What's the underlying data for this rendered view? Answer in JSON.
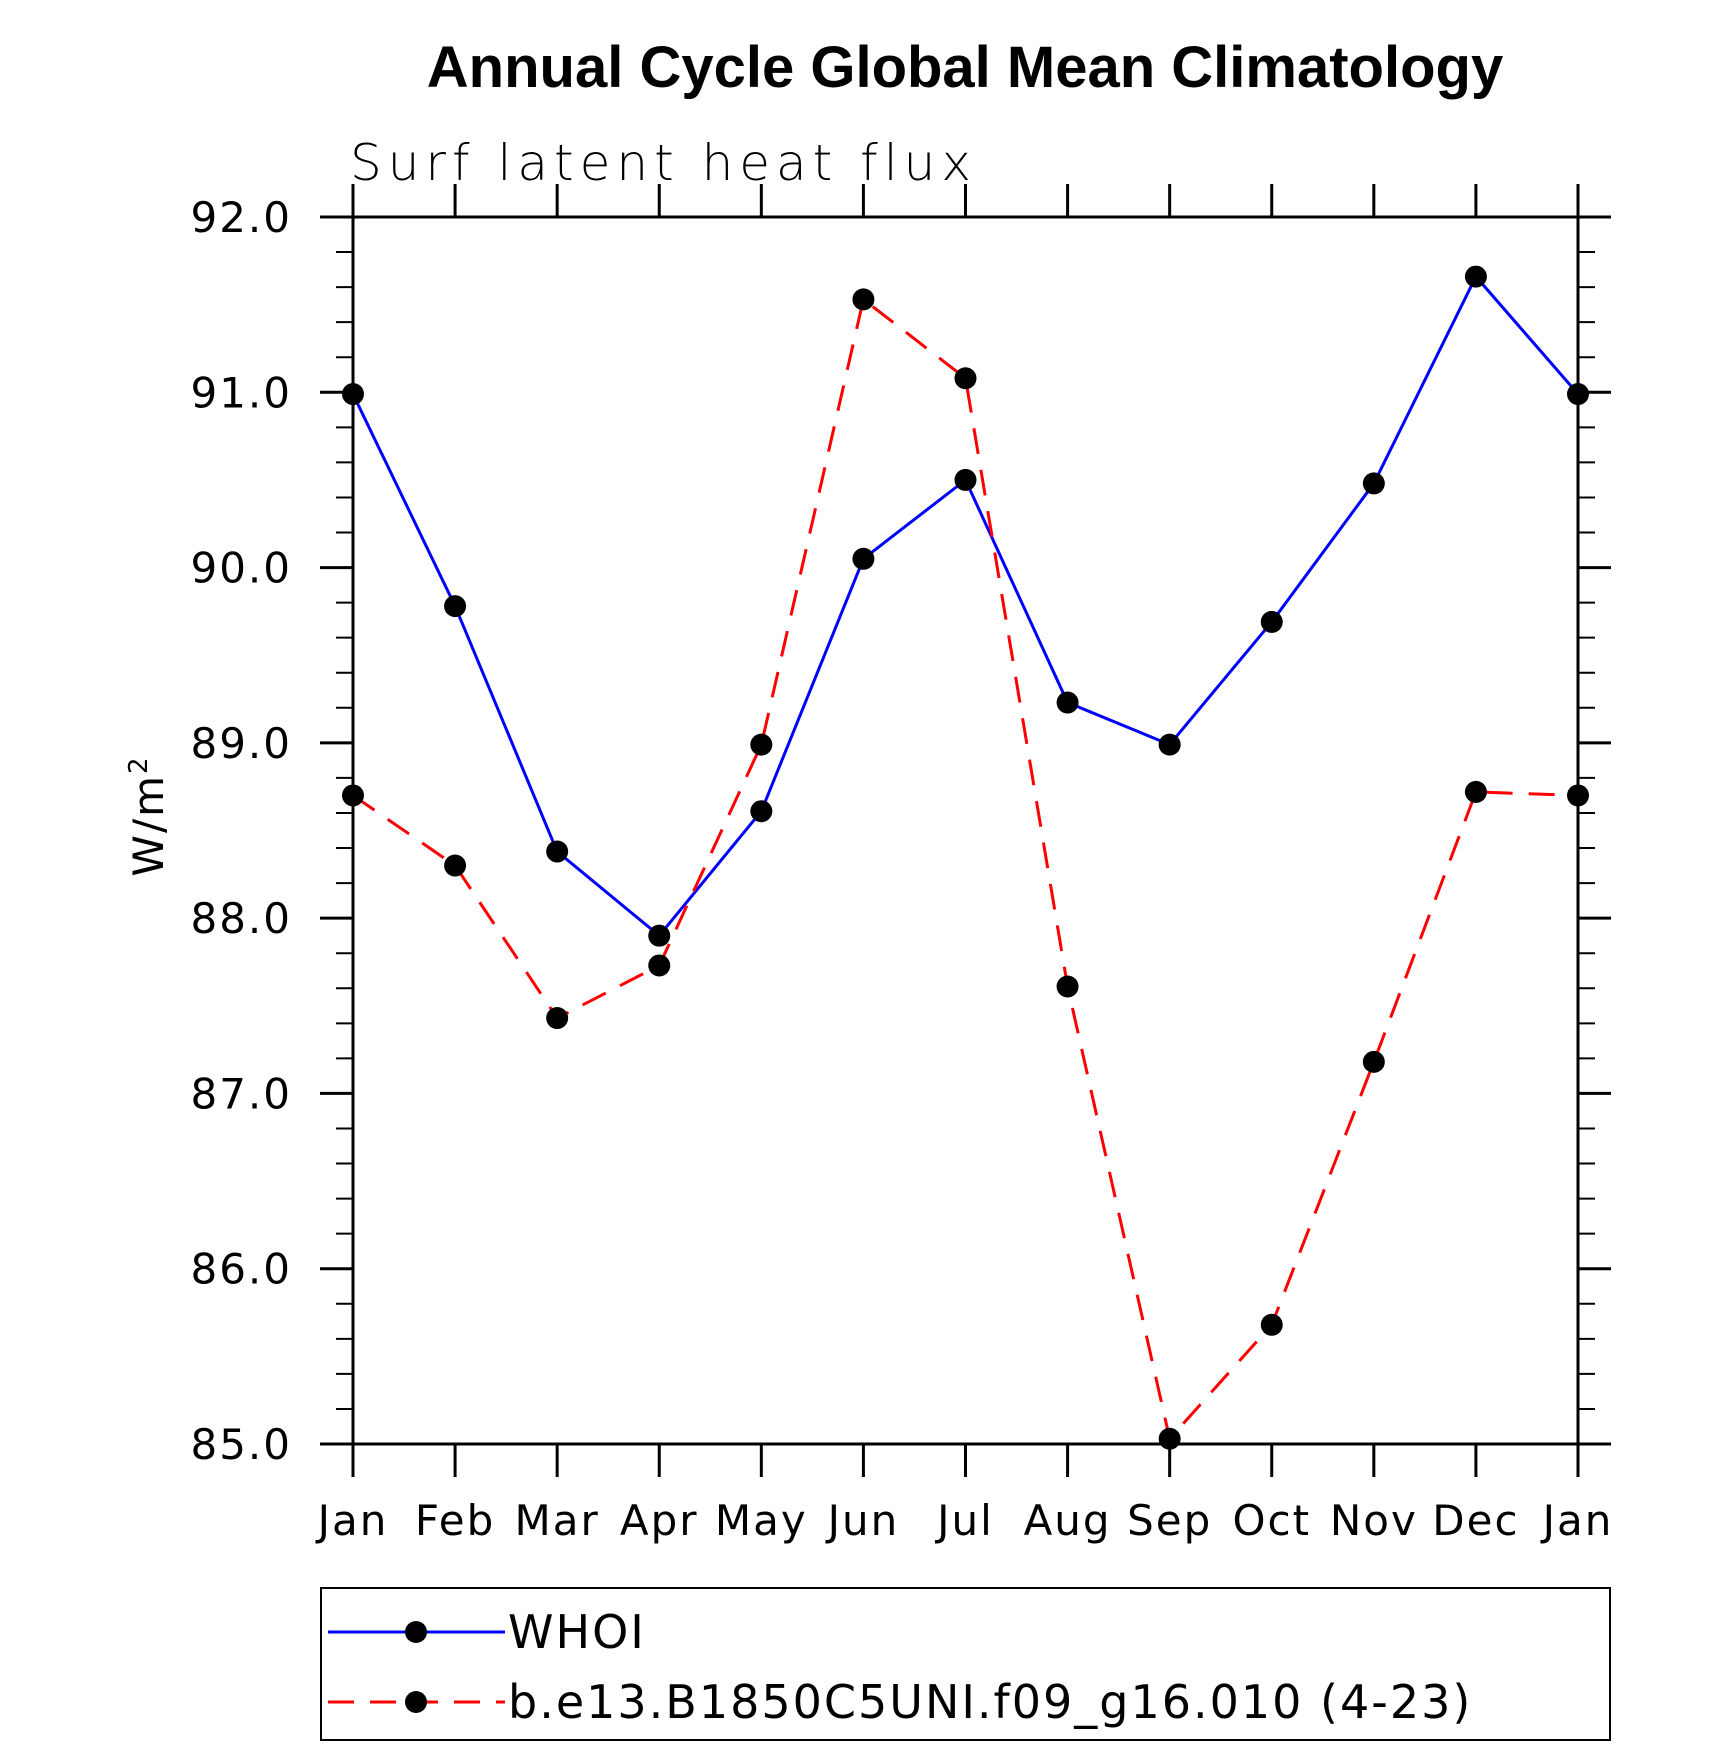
{
  "chart_data": {
    "type": "line",
    "title": "Annual Cycle Global Mean Climatology",
    "subtitle": "Surf latent heat flux",
    "ylabel": "W/m",
    "ylabel_sup": "2",
    "xlabel": "",
    "categories": [
      "Jan",
      "Feb",
      "Mar",
      "Apr",
      "May",
      "Jun",
      "Jul",
      "Aug",
      "Sep",
      "Oct",
      "Nov",
      "Dec",
      "Jan"
    ],
    "ylim": [
      85.0,
      92.0
    ],
    "yticks": [
      "85.0",
      "86.0",
      "87.0",
      "88.0",
      "89.0",
      "90.0",
      "91.0",
      "92.0"
    ],
    "grid": false,
    "legend_position": "bottom",
    "series": [
      {
        "name": "WHOI",
        "color": "#0000ff",
        "line_style": "solid",
        "marker": "filled-circle",
        "values": [
          90.99,
          89.78,
          88.38,
          87.9,
          88.61,
          90.05,
          90.5,
          89.23,
          88.99,
          89.69,
          90.48,
          91.66,
          90.99
        ]
      },
      {
        "name": "b.e13.B1850C5UNI.f09_g16.010 (4-23)",
        "color": "#ff0000",
        "line_style": "dashed",
        "marker": "filled-circle",
        "values": [
          88.7,
          88.3,
          87.43,
          87.73,
          88.99,
          91.53,
          91.08,
          87.61,
          85.03,
          85.68,
          87.18,
          88.72,
          88.7
        ]
      }
    ]
  }
}
